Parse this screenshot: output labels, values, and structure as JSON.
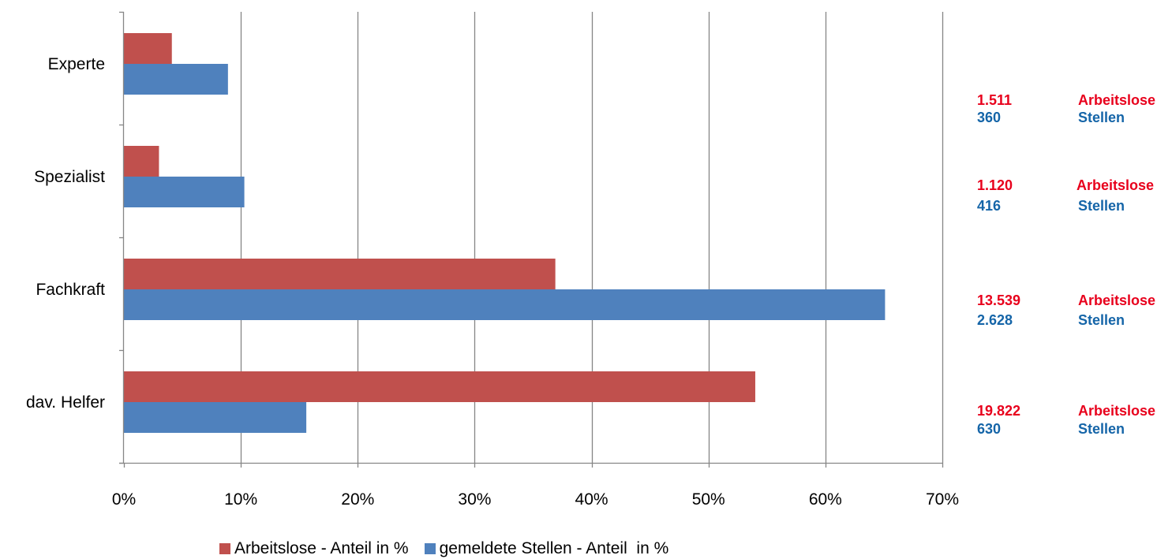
{
  "chart_data": {
    "type": "bar",
    "orientation": "horizontal",
    "categories": [
      "Experte",
      "Spezialist",
      "Fachkraft",
      "dav. Helfer"
    ],
    "series": [
      {
        "name": "Arbeitslose - Anteil in %",
        "color": "#c0504d",
        "values": [
          4.1,
          3.0,
          36.9,
          54.0
        ]
      },
      {
        "name": "gemeldete Stellen - Anteil  in %",
        "color": "#4f81bd",
        "values": [
          8.9,
          10.3,
          65.1,
          15.6
        ]
      }
    ],
    "xlim": [
      0,
      70
    ],
    "xticks": [
      "0%",
      "10%",
      "20%",
      "30%",
      "40%",
      "50%",
      "60%",
      "70%"
    ],
    "grid": true,
    "legend_position": "bottom"
  },
  "annotations": [
    {
      "arbeitslose_value": "1.511",
      "arbeitslose_label": "Arbeitslose",
      "stellen_value": "360",
      "stellen_label": "Stellen"
    },
    {
      "arbeitslose_value": "1.120",
      "arbeitslose_label": "Arbeitslose",
      "stellen_value": "416",
      "stellen_label": "Stellen"
    },
    {
      "arbeitslose_value": "13.539",
      "arbeitslose_label": "Arbeitslose",
      "stellen_value": "2.628",
      "stellen_label": "Stellen"
    },
    {
      "arbeitslose_value": "19.822",
      "arbeitslose_label": "Arbeitslose",
      "stellen_value": "630",
      "stellen_label": "Stellen"
    }
  ]
}
